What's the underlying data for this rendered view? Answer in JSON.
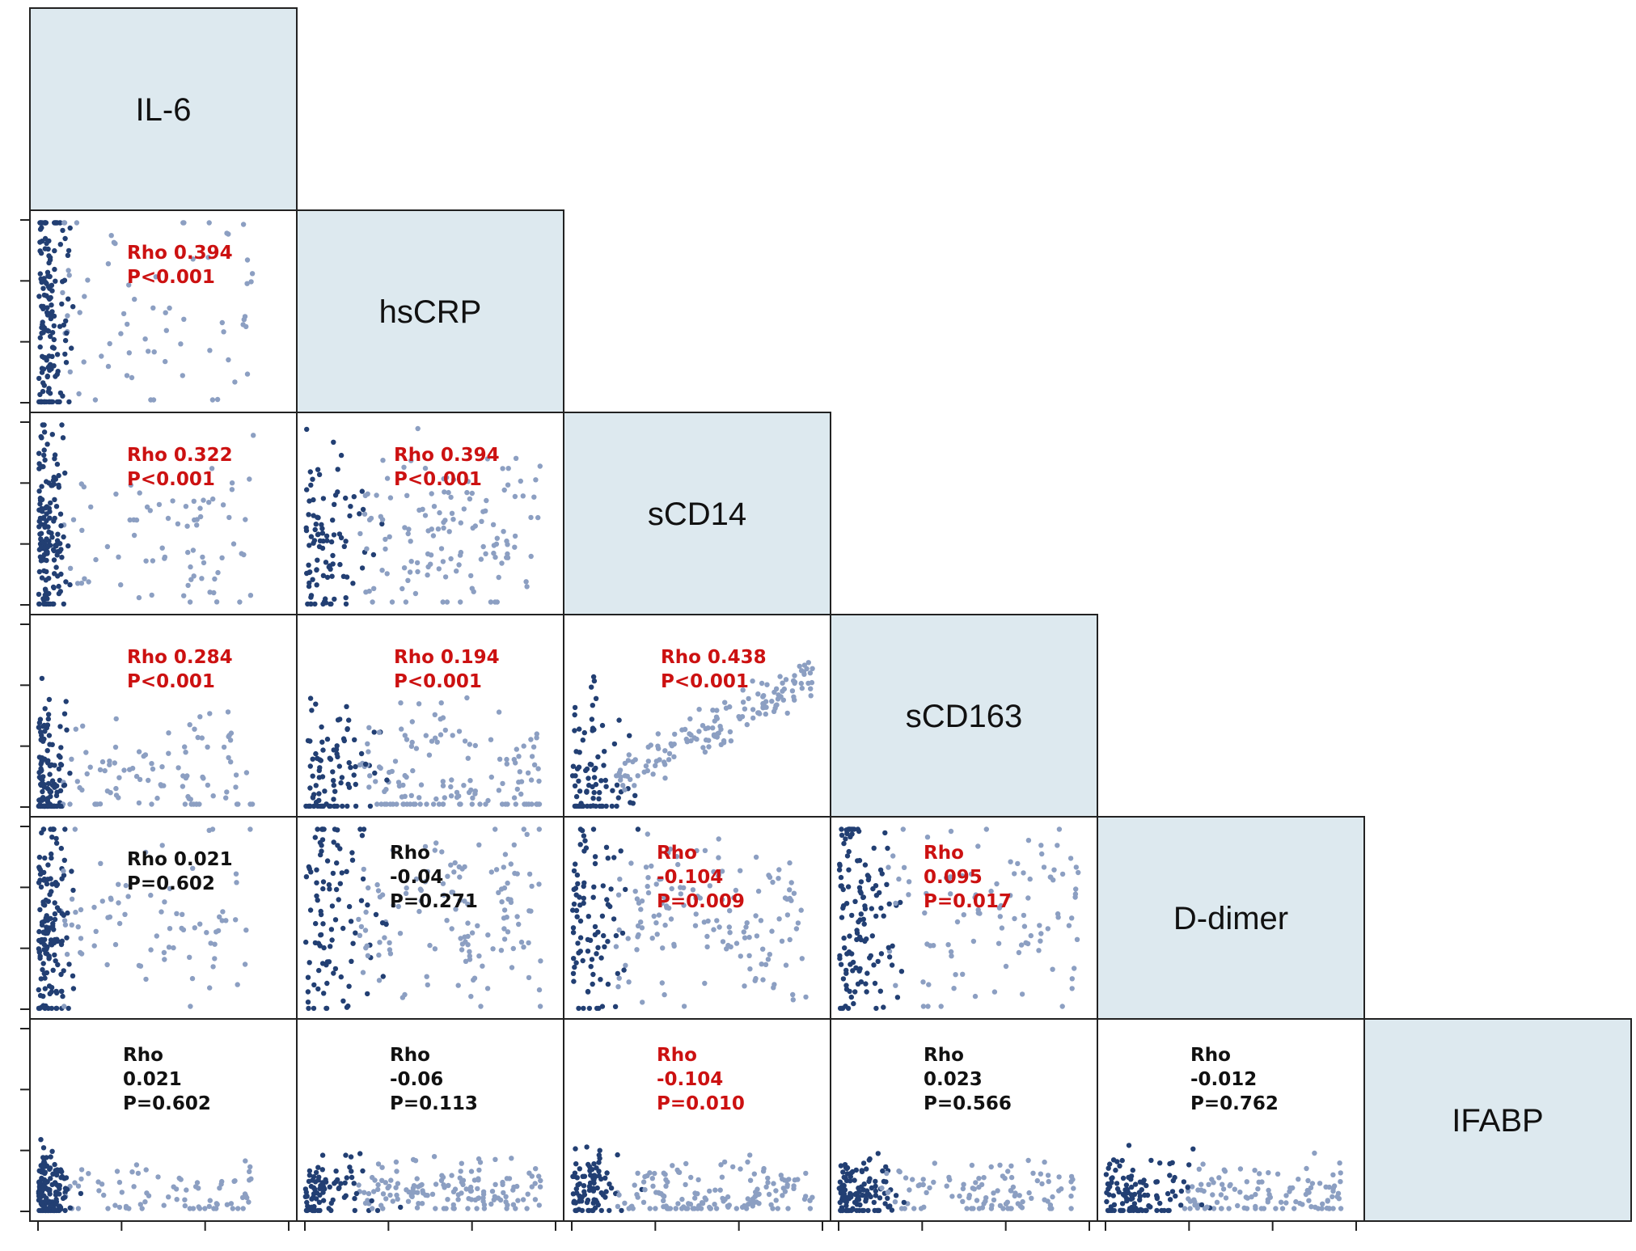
{
  "chart_data": {
    "type": "scatter",
    "title": "",
    "variables": [
      "IL-6",
      "hsCRP",
      "sCD14",
      "sCD163",
      "D-dimer",
      "IFABP"
    ],
    "colors": {
      "diagonal_fill": "#dde9ef",
      "point_dark": "#223f73",
      "point_light": "#8c9fc2",
      "significant_text": "#cc1111",
      "nonsignificant_text": "#111111"
    },
    "pairs": [
      {
        "row": 1,
        "col": 0,
        "lines": [
          "Rho 0.394",
          "P<0.001"
        ],
        "significant": true
      },
      {
        "row": 2,
        "col": 0,
        "lines": [
          "Rho 0.322",
          "P<0.001"
        ],
        "significant": true
      },
      {
        "row": 2,
        "col": 1,
        "lines": [
          "Rho 0.394",
          "P<0.001"
        ],
        "significant": true
      },
      {
        "row": 3,
        "col": 0,
        "lines": [
          "Rho 0.284",
          "P<0.001"
        ],
        "significant": true
      },
      {
        "row": 3,
        "col": 1,
        "lines": [
          "Rho 0.194",
          "P<0.001"
        ],
        "significant": true
      },
      {
        "row": 3,
        "col": 2,
        "lines": [
          "Rho 0.438",
          "P<0.001"
        ],
        "significant": true
      },
      {
        "row": 4,
        "col": 0,
        "lines": [
          "Rho 0.021",
          "P=0.602"
        ],
        "significant": false
      },
      {
        "row": 4,
        "col": 1,
        "lines": [
          "Rho",
          "-0.04",
          "P=0.271"
        ],
        "significant": false
      },
      {
        "row": 4,
        "col": 2,
        "lines": [
          "Rho",
          "-0.104",
          "P=0.009"
        ],
        "significant": true
      },
      {
        "row": 4,
        "col": 3,
        "lines": [
          "Rho",
          "0.095",
          "P=0.017"
        ],
        "significant": true
      },
      {
        "row": 5,
        "col": 0,
        "lines": [
          "Rho",
          "0.021",
          "P=0.602"
        ],
        "significant": false
      },
      {
        "row": 5,
        "col": 1,
        "lines": [
          "Rho",
          "-0.06",
          "P=0.113"
        ],
        "significant": false
      },
      {
        "row": 5,
        "col": 2,
        "lines": [
          "Rho",
          "-0.104",
          "P=0.010"
        ],
        "significant": true
      },
      {
        "row": 5,
        "col": 3,
        "lines": [
          "Rho",
          "0.023",
          "P=0.566"
        ],
        "significant": false
      },
      {
        "row": 5,
        "col": 4,
        "lines": [
          "Rho",
          "-0.012",
          "P=0.762"
        ],
        "significant": false
      }
    ]
  }
}
